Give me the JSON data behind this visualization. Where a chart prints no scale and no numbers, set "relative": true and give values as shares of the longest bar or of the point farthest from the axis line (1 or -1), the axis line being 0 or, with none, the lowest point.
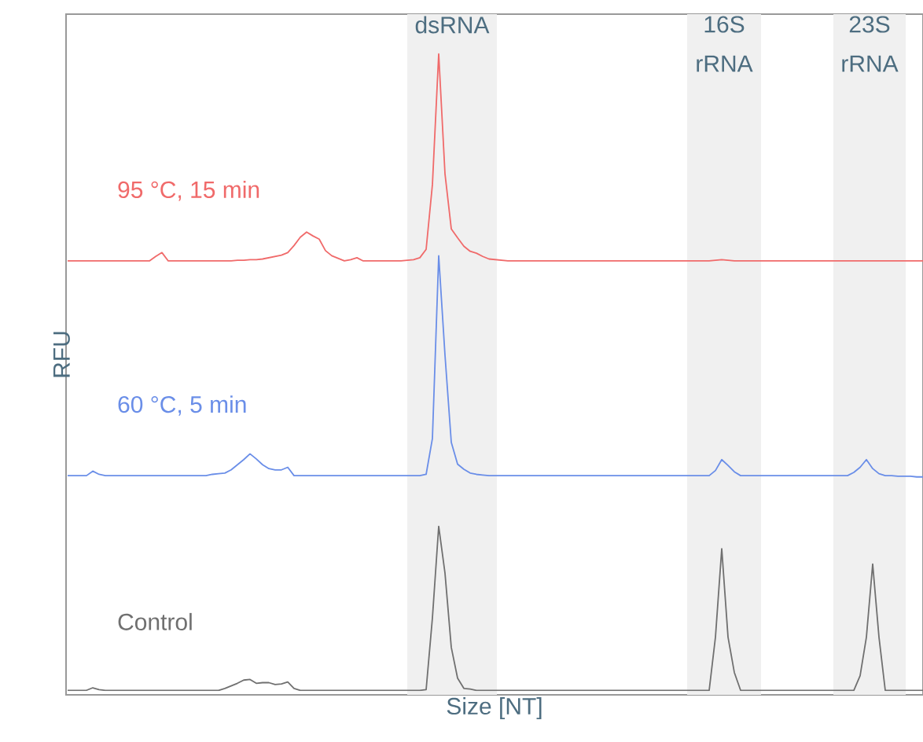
{
  "chart_data": {
    "type": "line",
    "relative": true,
    "xlabel": "Size [NT]",
    "ylabel": "RFU",
    "categories": [
      null,
      null,
      null,
      null,
      null,
      null,
      null,
      null,
      null,
      null,
      null,
      null,
      null,
      null,
      null,
      null,
      null,
      null,
      null,
      null,
      null,
      null,
      null,
      null,
      null,
      null,
      null,
      null,
      null,
      null,
      null,
      null,
      null,
      null,
      null,
      null,
      null,
      null,
      null,
      null,
      null,
      null,
      null,
      null,
      null,
      null,
      null,
      null,
      null,
      null,
      null,
      null,
      null,
      null,
      null,
      null,
      null,
      null,
      null,
      null,
      null,
      null,
      null,
      null,
      null,
      null,
      null,
      null,
      null,
      null,
      null,
      null,
      null,
      null,
      null,
      null,
      null,
      null,
      null,
      null,
      null,
      null,
      null,
      null,
      null,
      null,
      null,
      null,
      null,
      null,
      null,
      null,
      null,
      null,
      null,
      null,
      null,
      null,
      null,
      null,
      null,
      null,
      null,
      null,
      null,
      null,
      null,
      null,
      null,
      null,
      null,
      null,
      null,
      null,
      null,
      null,
      null,
      null,
      null,
      null,
      null,
      null,
      null,
      null,
      null,
      null,
      null,
      null,
      null,
      null,
      null,
      null,
      null,
      null,
      null,
      null,
      null
    ],
    "annotations": [
      "dsRNA",
      "16S rRNA",
      "23S rRNA"
    ],
    "series": [
      {
        "name": "95 °C, 15 min",
        "color": "#f06a6a",
        "values": [
          0.677,
          0.677,
          0.677,
          0.677,
          0.677,
          0.677,
          0.677,
          0.677,
          0.677,
          0.677,
          0.677,
          0.677,
          0.677,
          0.677,
          0.684,
          0.69,
          0.677,
          0.677,
          0.677,
          0.677,
          0.677,
          0.677,
          0.677,
          0.677,
          0.677,
          0.677,
          0.677,
          0.678,
          0.678,
          0.679,
          0.679,
          0.68,
          0.682,
          0.684,
          0.686,
          0.69,
          0.701,
          0.714,
          0.722,
          0.716,
          0.711,
          0.693,
          0.685,
          0.681,
          0.677,
          0.679,
          0.682,
          0.677,
          0.677,
          0.677,
          0.677,
          0.677,
          0.677,
          0.677,
          0.678,
          0.679,
          0.682,
          0.695,
          0.796,
          1.0,
          0.813,
          0.727,
          0.713,
          0.7,
          0.692,
          0.689,
          0.684,
          0.68,
          0.679,
          0.678,
          0.677,
          0.677,
          0.677,
          0.677,
          0.677,
          0.677,
          0.677,
          0.677,
          0.677,
          0.677,
          0.677,
          0.677,
          0.677,
          0.677,
          0.677,
          0.677,
          0.677,
          0.677,
          0.677,
          0.677,
          0.677,
          0.677,
          0.677,
          0.677,
          0.677,
          0.677,
          0.677,
          0.677,
          0.677,
          0.677,
          0.677,
          0.677,
          0.677,
          0.678,
          0.679,
          0.678,
          0.677,
          0.677,
          0.677,
          0.677,
          0.677,
          0.677,
          0.677,
          0.677,
          0.677,
          0.677,
          0.677,
          0.677,
          0.677,
          0.677,
          0.677,
          0.677,
          0.677,
          0.677,
          0.677,
          0.677,
          0.677,
          0.677,
          0.677,
          0.677,
          0.677,
          0.677,
          0.677,
          0.677,
          0.677,
          0.677,
          0.677
        ]
      },
      {
        "name": "60 °C, 5 min",
        "color": "#6a8ee8",
        "values": [
          0.342,
          0.342,
          0.342,
          0.342,
          0.349,
          0.344,
          0.342,
          0.342,
          0.342,
          0.342,
          0.342,
          0.342,
          0.342,
          0.342,
          0.342,
          0.342,
          0.342,
          0.342,
          0.342,
          0.342,
          0.342,
          0.342,
          0.342,
          0.344,
          0.345,
          0.346,
          0.351,
          0.359,
          0.367,
          0.376,
          0.368,
          0.359,
          0.353,
          0.351,
          0.351,
          0.355,
          0.342,
          0.342,
          0.342,
          0.342,
          0.342,
          0.342,
          0.342,
          0.342,
          0.342,
          0.342,
          0.342,
          0.342,
          0.342,
          0.342,
          0.342,
          0.342,
          0.342,
          0.342,
          0.342,
          0.342,
          0.342,
          0.344,
          0.4,
          0.685,
          0.53,
          0.394,
          0.36,
          0.352,
          0.346,
          0.344,
          0.343,
          0.342,
          0.342,
          0.342,
          0.342,
          0.342,
          0.342,
          0.342,
          0.342,
          0.342,
          0.342,
          0.342,
          0.342,
          0.342,
          0.342,
          0.342,
          0.342,
          0.342,
          0.342,
          0.342,
          0.342,
          0.342,
          0.342,
          0.342,
          0.342,
          0.342,
          0.342,
          0.342,
          0.342,
          0.342,
          0.342,
          0.342,
          0.342,
          0.342,
          0.342,
          0.342,
          0.342,
          0.35,
          0.367,
          0.358,
          0.348,
          0.342,
          0.342,
          0.342,
          0.342,
          0.342,
          0.342,
          0.342,
          0.342,
          0.342,
          0.342,
          0.342,
          0.342,
          0.342,
          0.342,
          0.342,
          0.342,
          0.342,
          0.342,
          0.347,
          0.355,
          0.367,
          0.353,
          0.345,
          0.342,
          0.342,
          0.341,
          0.341,
          0.341,
          0.34,
          0.34
        ]
      },
      {
        "name": "Control",
        "color": "#707070",
        "values": [
          0.007,
          0.007,
          0.007,
          0.007,
          0.011,
          0.008,
          0.007,
          0.007,
          0.007,
          0.007,
          0.007,
          0.007,
          0.007,
          0.007,
          0.007,
          0.007,
          0.007,
          0.007,
          0.007,
          0.007,
          0.007,
          0.007,
          0.007,
          0.007,
          0.007,
          0.01,
          0.014,
          0.018,
          0.023,
          0.024,
          0.018,
          0.019,
          0.019,
          0.016,
          0.017,
          0.02,
          0.01,
          0.007,
          0.007,
          0.007,
          0.007,
          0.007,
          0.007,
          0.007,
          0.007,
          0.007,
          0.007,
          0.007,
          0.007,
          0.007,
          0.007,
          0.007,
          0.007,
          0.007,
          0.007,
          0.007,
          0.007,
          0.008,
          0.12,
          0.263,
          0.19,
          0.074,
          0.026,
          0.01,
          0.009,
          0.007,
          0.007,
          0.007,
          0.007,
          0.007,
          0.007,
          0.007,
          0.007,
          0.007,
          0.007,
          0.007,
          0.007,
          0.007,
          0.007,
          0.007,
          0.007,
          0.007,
          0.007,
          0.007,
          0.007,
          0.007,
          0.007,
          0.007,
          0.007,
          0.007,
          0.007,
          0.007,
          0.007,
          0.007,
          0.007,
          0.007,
          0.007,
          0.007,
          0.007,
          0.007,
          0.007,
          0.007,
          0.007,
          0.09,
          0.228,
          0.09,
          0.035,
          0.007,
          0.007,
          0.007,
          0.007,
          0.007,
          0.007,
          0.007,
          0.007,
          0.007,
          0.007,
          0.007,
          0.007,
          0.007,
          0.007,
          0.007,
          0.007,
          0.007,
          0.007,
          0.007,
          0.03,
          0.09,
          0.204,
          0.09,
          0.007,
          0.007,
          0.007,
          0.007,
          0.007,
          0.007,
          0.007
        ]
      }
    ]
  }
}
